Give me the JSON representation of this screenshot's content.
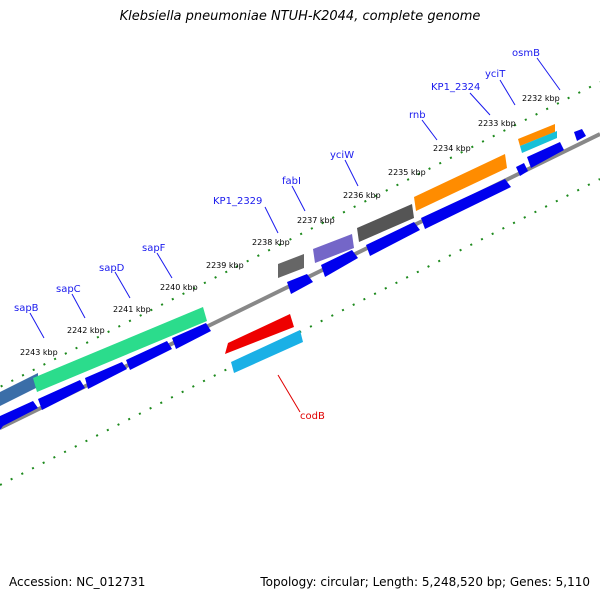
{
  "title": "Klebsiella pneumoniae NTUH-K2044, complete genome",
  "ticks": [
    "2243 kbp",
    "2242 kbp",
    "2241 kbp",
    "2240 kbp",
    "2239 kbp",
    "2238 kbp",
    "2237 kbp",
    "2236 kbp",
    "2235 kbp",
    "2234 kbp",
    "2233 kbp",
    "2232 kbp"
  ],
  "genes": [
    "sapB",
    "sapC",
    "sapD",
    "sapF",
    "KP1_2329",
    "fabI",
    "yciW",
    "rnb",
    "KP1_2324",
    "yciT",
    "osmB",
    "codB"
  ],
  "footer": {
    "accession": "Accession: NC_012731",
    "topology": "Topology: circular; Length: 5,248,520 bp; Genes: 5,110"
  },
  "colors": {
    "backbone": "#888888",
    "cds": "#0000ee",
    "dots": "#1d8a1d",
    "label": "#1a1aee",
    "codB": "#ee0000"
  }
}
